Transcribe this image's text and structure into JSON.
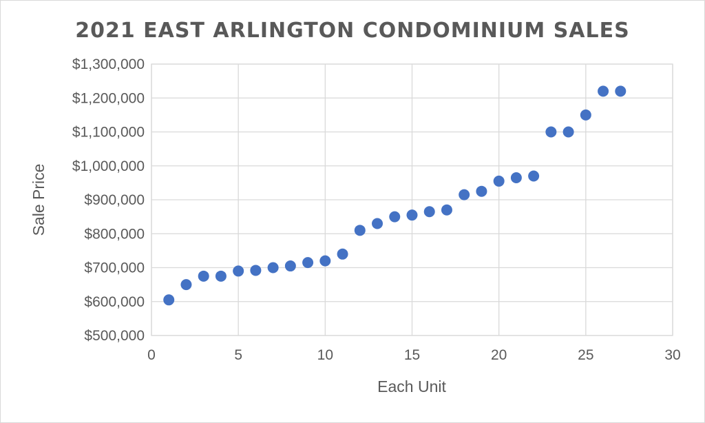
{
  "chart_data": {
    "type": "scatter",
    "title": "2021 EAST ARLINGTON CONDOMINIUM SALES",
    "xlabel": "Each Unit",
    "ylabel": "Sale Price",
    "xlim": [
      0,
      30
    ],
    "ylim": [
      500000,
      1300000
    ],
    "x_ticks": [
      0,
      5,
      10,
      15,
      20,
      25,
      30
    ],
    "y_ticks": [
      500000,
      600000,
      700000,
      800000,
      900000,
      1000000,
      1100000,
      1200000,
      1300000
    ],
    "x_tick_labels": [
      "0",
      "5",
      "10",
      "15",
      "20",
      "25",
      "30"
    ],
    "y_tick_labels": [
      "$500,000",
      "$600,000",
      "$700,000",
      "$800,000",
      "$900,000",
      "$1,000,000",
      "$1,100,000",
      "$1,200,000",
      "$1,300,000"
    ],
    "grid": true,
    "marker_color": "#4472c4",
    "series": [
      {
        "x": [
          1,
          2,
          3,
          4,
          5,
          6,
          7,
          8,
          9,
          10,
          11,
          12,
          13,
          14,
          15,
          16,
          17,
          18,
          19,
          20,
          21,
          22,
          23,
          24,
          25,
          26,
          27
        ],
        "y": [
          605000,
          650000,
          675000,
          675000,
          690000,
          692000,
          700000,
          705000,
          715000,
          720000,
          740000,
          810000,
          830000,
          850000,
          855000,
          865000,
          870000,
          915000,
          925000,
          955000,
          965000,
          970000,
          1100000,
          1100000,
          1150000,
          1220000,
          1220000
        ]
      }
    ]
  }
}
